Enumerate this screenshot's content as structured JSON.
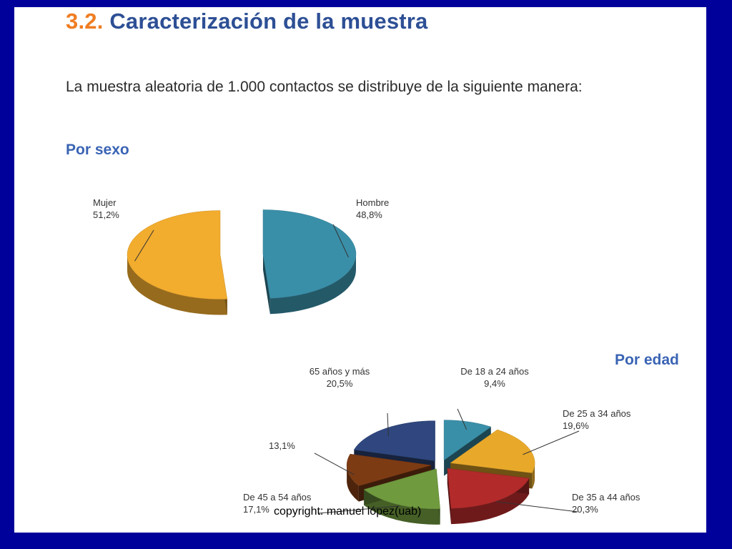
{
  "slide": {
    "title_number": "3.2.",
    "title_text": "Caracterización de la muestra",
    "intro": "La muestra aleatoria de 1.000 contactos se distribuye de la siguiente manera:",
    "section_sexo": "Por sexo",
    "section_edad": "Por edad",
    "copyright": "copyright: manuel lópez(uab)"
  },
  "chart_data": [
    {
      "type": "pie",
      "title": "Por sexo",
      "categories": [
        "Hombre",
        "Mujer"
      ],
      "values": [
        48.8,
        51.2
      ],
      "value_labels": [
        "48,8%",
        "51,2%"
      ],
      "colors": [
        "#3a8fa8",
        "#f2ac2e"
      ]
    },
    {
      "type": "pie",
      "title": "Por edad",
      "categories": [
        "De 18 a 24 años",
        "De 25 a 34 años",
        "De 35 a 44 años",
        "De 45 a 54 años",
        "",
        "65 años y más"
      ],
      "values": [
        9.4,
        19.6,
        20.3,
        17.1,
        13.1,
        20.5
      ],
      "value_labels": [
        "9,4%",
        "19,6%",
        "20,3%",
        "17,1%",
        "13,1%",
        "20,5%"
      ],
      "colors": [
        "#3a8fa8",
        "#e8a92a",
        "#b32a2a",
        "#6f9a3e",
        "#7d3b14",
        "#2f477e"
      ]
    }
  ]
}
